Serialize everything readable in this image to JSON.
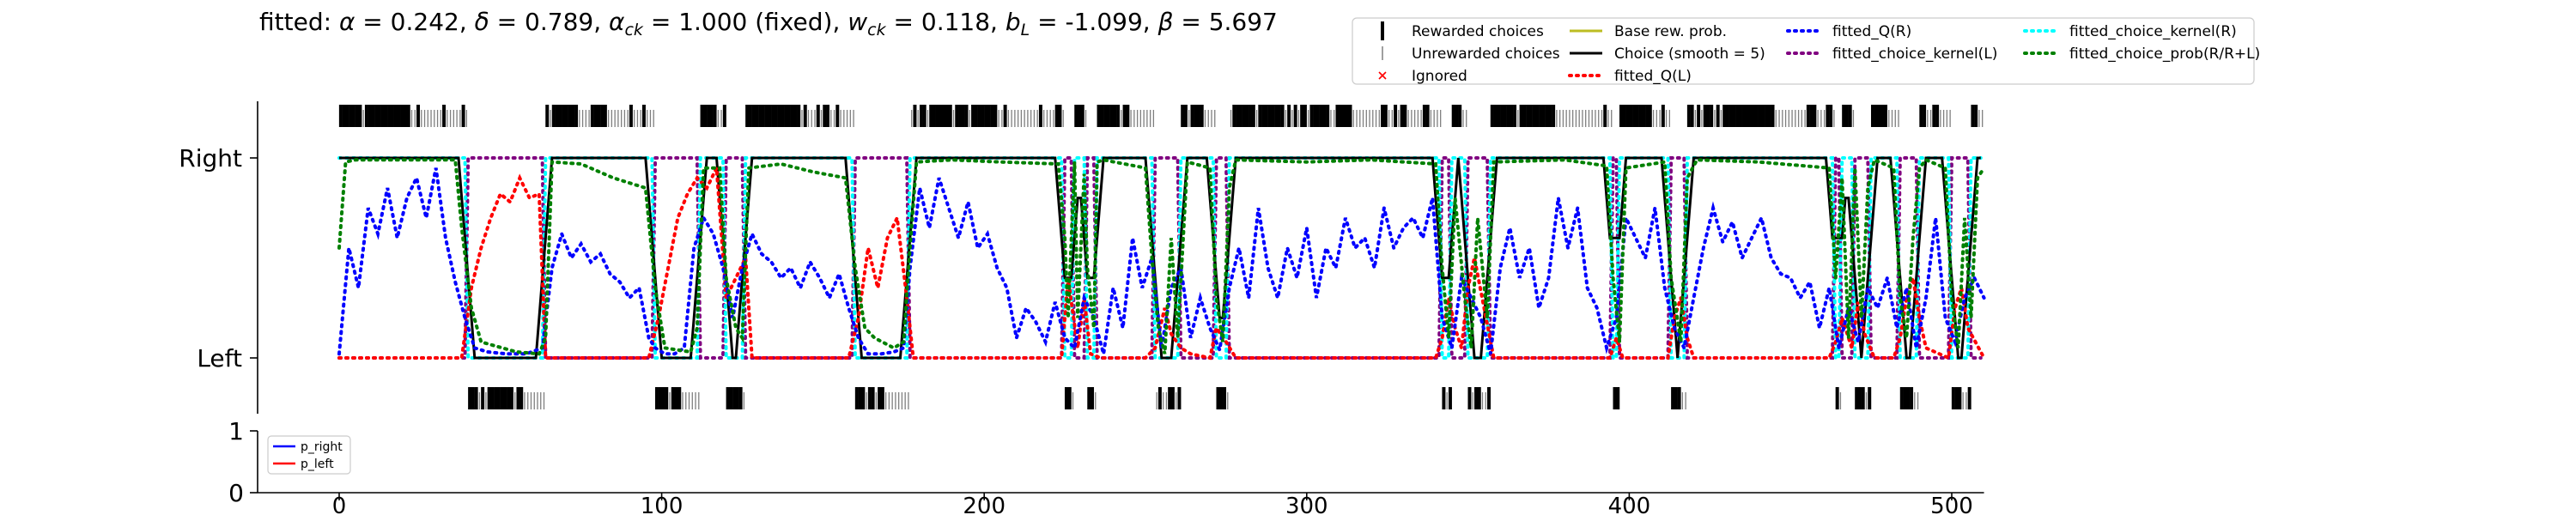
{
  "chart_data": [
    {
      "type": "line",
      "title": "fitted: α = 0.242, δ = 0.789, α_ck = 1.000 (fixed), w_ck = 0.118, b_L = -1.099, β = 5.697",
      "title_parts": [
        {
          "t": "fitted: "
        },
        {
          "t": "α",
          "i": true
        },
        {
          "t": " = 0.242, "
        },
        {
          "t": "δ",
          "i": true
        },
        {
          "t": " = 0.789, "
        },
        {
          "t": "α",
          "i": true
        },
        {
          "t": "ck",
          "i": true,
          "sub": true
        },
        {
          "t": " = 1.000 (fixed), "
        },
        {
          "t": "w",
          "i": true
        },
        {
          "t": "ck",
          "i": true,
          "sub": true
        },
        {
          "t": " = 0.118, "
        },
        {
          "t": "b",
          "i": true
        },
        {
          "t": "L",
          "i": true,
          "sub": true
        },
        {
          "t": " = -1.099, "
        },
        {
          "t": "β",
          "i": true
        },
        {
          "t": " = 5.697"
        }
      ],
      "xlim": [
        -6,
        510
      ],
      "ylim": [
        -0.35,
        1.35
      ],
      "yticks": [
        0,
        1
      ],
      "ytick_labels": [
        "Left",
        "Right"
      ],
      "grid": false,
      "legend_position": "top-right",
      "legend": [
        "Rewarded choices",
        "Unrewarded choices",
        "Ignored",
        "Base rew. prob.",
        "Choice (smooth = 5)",
        "fitted_Q(L)",
        "fitted_Q(R)",
        "fitted_choice_kernel(L)",
        "fitted_choice_kernel(R)",
        "fitted_choice_prob(R/R+L)"
      ],
      "colors": {
        "rewarded": "#000000",
        "unrewarded": "#7f7f7f",
        "ignored": "#ff0000",
        "base_rew_prob": "#bcbd22",
        "choice_smooth": "#000000",
        "q_left": "#ff0000",
        "q_right": "#0000ff",
        "ck_left": "#800080",
        "ck_right": "#00ffff",
        "choice_prob": "#008000"
      },
      "choice_blocks": [
        {
          "side": "right",
          "start": 0,
          "end": 40
        },
        {
          "side": "left",
          "start": 40,
          "end": 64
        },
        {
          "side": "right",
          "start": 64,
          "end": 98
        },
        {
          "side": "left",
          "start": 98,
          "end": 112
        },
        {
          "side": "right",
          "start": 112,
          "end": 120
        },
        {
          "side": "left",
          "start": 120,
          "end": 126
        },
        {
          "side": "right",
          "start": 126,
          "end": 160
        },
        {
          "side": "left",
          "start": 160,
          "end": 177
        },
        {
          "side": "right",
          "start": 177,
          "end": 225
        },
        {
          "side": "left",
          "start": 225,
          "end": 228
        },
        {
          "side": "right",
          "start": 228,
          "end": 232
        },
        {
          "side": "left",
          "start": 232,
          "end": 235
        },
        {
          "side": "right",
          "start": 235,
          "end": 253
        },
        {
          "side": "left",
          "start": 253,
          "end": 261
        },
        {
          "side": "right",
          "start": 261,
          "end": 272
        },
        {
          "side": "left",
          "start": 272,
          "end": 276
        },
        {
          "side": "right",
          "start": 276,
          "end": 342
        },
        {
          "side": "left",
          "start": 342,
          "end": 345
        },
        {
          "side": "right",
          "start": 345,
          "end": 350
        },
        {
          "side": "left",
          "start": 350,
          "end": 357
        },
        {
          "side": "right",
          "start": 357,
          "end": 395
        },
        {
          "side": "left",
          "start": 395,
          "end": 397
        },
        {
          "side": "right",
          "start": 397,
          "end": 413
        },
        {
          "side": "left",
          "start": 413,
          "end": 418
        },
        {
          "side": "right",
          "start": 418,
          "end": 464
        },
        {
          "side": "left",
          "start": 464,
          "end": 466
        },
        {
          "side": "right",
          "start": 466,
          "end": 470
        },
        {
          "side": "left",
          "start": 470,
          "end": 475
        },
        {
          "side": "right",
          "start": 475,
          "end": 484
        },
        {
          "side": "left",
          "start": 484,
          "end": 490
        },
        {
          "side": "right",
          "start": 490,
          "end": 500
        },
        {
          "side": "left",
          "start": 500,
          "end": 506
        },
        {
          "side": "right",
          "start": 506,
          "end": 510
        }
      ],
      "series": [
        {
          "name": "fitted_Q(R)",
          "x": [
            0,
            3,
            6,
            9,
            12,
            15,
            18,
            21,
            24,
            27,
            30,
            33,
            36,
            39,
            42,
            46,
            52,
            58,
            63,
            66,
            69,
            72,
            75,
            78,
            81,
            84,
            87,
            90,
            93,
            96,
            98,
            101,
            104,
            107,
            110,
            113,
            116,
            119,
            122,
            125,
            128,
            131,
            134,
            137,
            140,
            143,
            146,
            149,
            152,
            155,
            158,
            161,
            164,
            168,
            172,
            175,
            177,
            180,
            183,
            186,
            189,
            192,
            195,
            198,
            201,
            204,
            207,
            210,
            213,
            216,
            219,
            222,
            225,
            228,
            231,
            234,
            237,
            240,
            243,
            246,
            249,
            252,
            255,
            258,
            261,
            264,
            267,
            270,
            273,
            276,
            279,
            282,
            285,
            288,
            291,
            294,
            297,
            300,
            303,
            306,
            309,
            312,
            315,
            318,
            321,
            324,
            327,
            330,
            333,
            336,
            339,
            342,
            345,
            348,
            351,
            354,
            357,
            360,
            363,
            366,
            369,
            372,
            375,
            378,
            381,
            384,
            387,
            390,
            393,
            396,
            399,
            402,
            405,
            408,
            411,
            414,
            417,
            420,
            423,
            426,
            429,
            432,
            435,
            438,
            441,
            444,
            447,
            450,
            453,
            456,
            459,
            462,
            465,
            468,
            471,
            474,
            477,
            480,
            483,
            486,
            489,
            492,
            495,
            498,
            501,
            504,
            507,
            510
          ],
          "y": [
            0.02,
            0.55,
            0.35,
            0.75,
            0.62,
            0.85,
            0.6,
            0.8,
            0.9,
            0.7,
            0.95,
            0.6,
            0.38,
            0.2,
            0.05,
            0.03,
            0.02,
            0.02,
            0.05,
            0.45,
            0.62,
            0.5,
            0.57,
            0.48,
            0.52,
            0.42,
            0.38,
            0.3,
            0.35,
            0.1,
            0.05,
            0.02,
            0.02,
            0.05,
            0.55,
            0.7,
            0.62,
            0.45,
            0.2,
            0.45,
            0.62,
            0.52,
            0.48,
            0.4,
            0.45,
            0.35,
            0.48,
            0.4,
            0.3,
            0.42,
            0.25,
            0.1,
            0.02,
            0.02,
            0.03,
            0.05,
            0.45,
            0.85,
            0.65,
            0.9,
            0.75,
            0.6,
            0.78,
            0.55,
            0.62,
            0.45,
            0.35,
            0.1,
            0.25,
            0.18,
            0.08,
            0.28,
            0.1,
            0.05,
            0.3,
            0.2,
            0.02,
            0.35,
            0.15,
            0.6,
            0.35,
            0.5,
            0.05,
            0.35,
            0.45,
            0.1,
            0.3,
            0.15,
            0.04,
            0.35,
            0.55,
            0.3,
            0.75,
            0.45,
            0.3,
            0.55,
            0.4,
            0.65,
            0.3,
            0.55,
            0.45,
            0.7,
            0.55,
            0.6,
            0.45,
            0.75,
            0.55,
            0.65,
            0.7,
            0.6,
            0.8,
            0.2,
            0.05,
            0.4,
            0.3,
            0.2,
            0.02,
            0.45,
            0.65,
            0.4,
            0.55,
            0.25,
            0.4,
            0.8,
            0.55,
            0.75,
            0.35,
            0.25,
            0.05,
            0.2,
            0.7,
            0.6,
            0.5,
            0.75,
            0.35,
            0.15,
            0.05,
            0.3,
            0.55,
            0.75,
            0.58,
            0.68,
            0.5,
            0.6,
            0.7,
            0.5,
            0.42,
            0.4,
            0.3,
            0.38,
            0.15,
            0.35,
            0.05,
            0.25,
            0.08,
            0.35,
            0.25,
            0.4,
            0.15,
            0.35,
            0.05,
            0.3,
            0.7,
            0.2,
            0.08,
            0.3,
            0.4,
            0.3
          ]
        },
        {
          "name": "fitted_Q(L)",
          "x": [
            0,
            38,
            41,
            44,
            47,
            50,
            53,
            56,
            59,
            62,
            64,
            96,
            99,
            102,
            105,
            108,
            111,
            114,
            117,
            120,
            123,
            126,
            128,
            158,
            161,
            164,
            167,
            170,
            173,
            176,
            178,
            224,
            226,
            229,
            231,
            233,
            236,
            250,
            253,
            256,
            258,
            261,
            264,
            270,
            272,
            275,
            278,
            340,
            342,
            344,
            346,
            348,
            350,
            352,
            355,
            358,
            394,
            396,
            398,
            412,
            414,
            416,
            418,
            420,
            462,
            464,
            466,
            469,
            471,
            473,
            476,
            482,
            484,
            486,
            488,
            490,
            492,
            499,
            501,
            503,
            505,
            510
          ],
          "y": [
            0.0,
            0.0,
            0.35,
            0.55,
            0.7,
            0.82,
            0.78,
            0.9,
            0.8,
            0.82,
            0.0,
            0.0,
            0.2,
            0.45,
            0.7,
            0.82,
            0.9,
            0.85,
            0.95,
            0.3,
            0.4,
            0.5,
            0.0,
            0.0,
            0.2,
            0.55,
            0.35,
            0.6,
            0.7,
            0.3,
            0.0,
            0.0,
            0.4,
            0.05,
            0.3,
            0.02,
            0.0,
            0.0,
            0.05,
            0.25,
            0.12,
            0.05,
            0.02,
            0.0,
            0.15,
            0.08,
            0.0,
            0.0,
            0.1,
            0.3,
            0.15,
            0.05,
            0.35,
            0.5,
            0.25,
            0.0,
            0.0,
            0.1,
            0.0,
            0.0,
            0.2,
            0.3,
            0.1,
            0.0,
            0.0,
            0.08,
            0.2,
            0.05,
            0.28,
            0.12,
            0.0,
            0.0,
            0.1,
            0.3,
            0.4,
            0.2,
            0.05,
            0.0,
            0.25,
            0.35,
            0.15,
            0.0
          ]
        },
        {
          "name": "fitted_choice_prob(R/R+L)",
          "x": [
            0,
            2,
            5,
            36,
            38,
            41,
            44,
            55,
            62,
            64,
            66,
            75,
            85,
            95,
            98,
            101,
            109,
            111,
            113,
            118,
            120,
            123,
            125,
            127,
            137,
            147,
            157,
            160,
            163,
            166,
            172,
            175,
            177,
            179,
            190,
            205,
            223,
            225,
            226,
            228,
            229,
            231,
            232,
            234,
            235,
            237,
            250,
            252,
            254,
            256,
            258,
            260,
            263,
            270,
            272,
            274,
            276,
            278,
            300,
            320,
            340,
            342,
            344,
            346,
            349,
            351,
            353,
            356,
            358,
            380,
            393,
            395,
            397,
            399,
            411,
            413,
            416,
            418,
            421,
            440,
            462,
            464,
            466,
            468,
            470,
            472,
            474,
            476,
            482,
            484,
            486,
            488,
            490,
            492,
            498,
            500,
            502,
            504,
            506,
            508,
            510
          ],
          "y": [
            0.55,
            0.98,
            0.99,
            0.99,
            0.65,
            0.25,
            0.08,
            0.03,
            0.02,
            0.1,
            0.98,
            0.97,
            0.9,
            0.85,
            0.35,
            0.05,
            0.03,
            0.15,
            0.95,
            0.95,
            0.4,
            0.15,
            0.1,
            0.95,
            0.97,
            0.93,
            0.9,
            0.45,
            0.15,
            0.1,
            0.05,
            0.08,
            0.55,
            0.98,
            0.99,
            0.98,
            0.97,
            0.6,
            0.2,
            0.98,
            0.2,
            0.92,
            0.45,
            0.15,
            0.98,
            0.99,
            0.95,
            0.5,
            0.15,
            0.02,
            0.6,
            0.1,
            0.98,
            0.95,
            0.3,
            0.08,
            0.85,
            0.99,
            0.98,
            0.99,
            0.97,
            0.45,
            0.1,
            0.8,
            0.3,
            0.05,
            0.7,
            0.2,
            0.98,
            0.99,
            0.96,
            0.4,
            0.08,
            0.95,
            0.98,
            0.4,
            0.08,
            0.9,
            0.99,
            0.98,
            0.95,
            0.4,
            0.9,
            0.1,
            0.95,
            0.2,
            0.85,
            0.99,
            0.95,
            0.3,
            0.1,
            0.6,
            0.95,
            0.99,
            0.95,
            0.3,
            0.05,
            0.7,
            0.2,
            0.9,
            0.95
          ]
        }
      ]
    },
    {
      "type": "line",
      "legend": [
        "p_right",
        "p_left"
      ],
      "legend_position": "upper-left",
      "xlim": [
        -6,
        510
      ],
      "ylim": [
        0,
        1
      ],
      "xticks": [
        0,
        100,
        200,
        300,
        400,
        500
      ],
      "yticks": [
        0,
        1
      ],
      "colors": {
        "p_right": "#0000ff",
        "p_left": "#ff0000"
      }
    }
  ]
}
